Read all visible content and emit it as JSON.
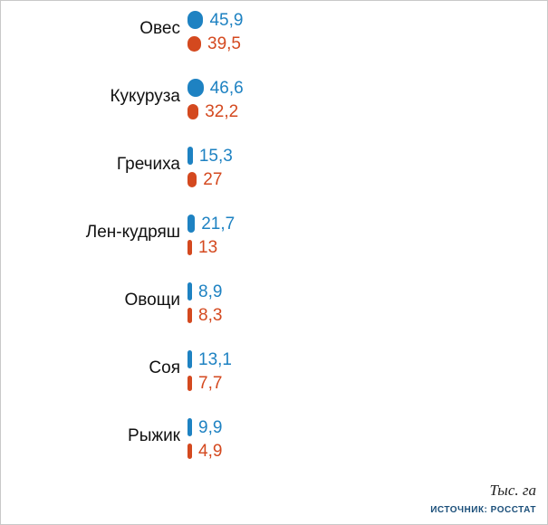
{
  "chart_data": {
    "type": "bar",
    "orientation": "horizontal",
    "title": "",
    "unit": "Тыс. га",
    "source": "ИСТОЧНИК: РОССТАТ",
    "categories": [
      "Овес",
      "Кукуруза",
      "Гречиха",
      "Лен-кудряш",
      "Овощи",
      "Соя",
      "Рыжик"
    ],
    "series": [
      {
        "name": "series-blue",
        "color": "#1e82c2",
        "values": [
          45.9,
          46.6,
          15.3,
          21.7,
          8.9,
          13.1,
          9.9
        ],
        "labels": [
          "45,9",
          "46,6",
          "15,3",
          "21,7",
          "8,9",
          "13,1",
          "9,9"
        ]
      },
      {
        "name": "series-red",
        "color": "#d4491f",
        "values": [
          39.5,
          32.2,
          27,
          13,
          8.3,
          7.7,
          4.9
        ],
        "labels": [
          "39,5",
          "32,2",
          "27",
          "13",
          "8,3",
          "7,7",
          "4,9"
        ]
      }
    ],
    "legend": [],
    "grid": false,
    "xlim": [
      0,
      50
    ]
  },
  "footer": {
    "unit": "Тыс. га",
    "source": "ИСТОЧНИК: РОССТАТ"
  }
}
